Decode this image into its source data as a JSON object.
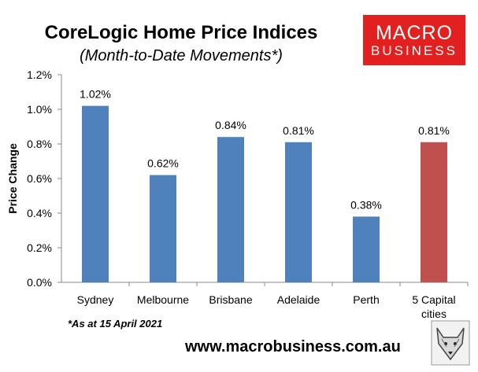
{
  "header": {
    "title": "CoreLogic Home Price Indices",
    "subtitle": "(Month-to-Date Movements*)"
  },
  "logo": {
    "line1": "MACRO",
    "line2": "BUSINESS",
    "color": "#e1201f"
  },
  "footnote": "*As at 15 April 2021",
  "url": "www.macrobusiness.com.au",
  "chart_data": {
    "type": "bar",
    "categories": [
      "Sydney",
      "Melbourne",
      "Brisbane",
      "Adelaide",
      "Perth",
      "5 Capital cities"
    ],
    "values": [
      1.02,
      0.62,
      0.84,
      0.81,
      0.38,
      0.81
    ],
    "data_labels": [
      "1.02%",
      "0.62%",
      "0.84%",
      "0.81%",
      "0.38%",
      "0.81%"
    ],
    "colors": [
      "#4f81bd",
      "#4f81bd",
      "#4f81bd",
      "#4f81bd",
      "#4f81bd",
      "#c0504d"
    ],
    "ylabel": "Price Change",
    "ylim": [
      0,
      1.2
    ],
    "yticks": [
      "0.0%",
      "0.2%",
      "0.4%",
      "0.6%",
      "0.8%",
      "1.0%",
      "1.2%"
    ],
    "grid": false,
    "legend": "none"
  }
}
